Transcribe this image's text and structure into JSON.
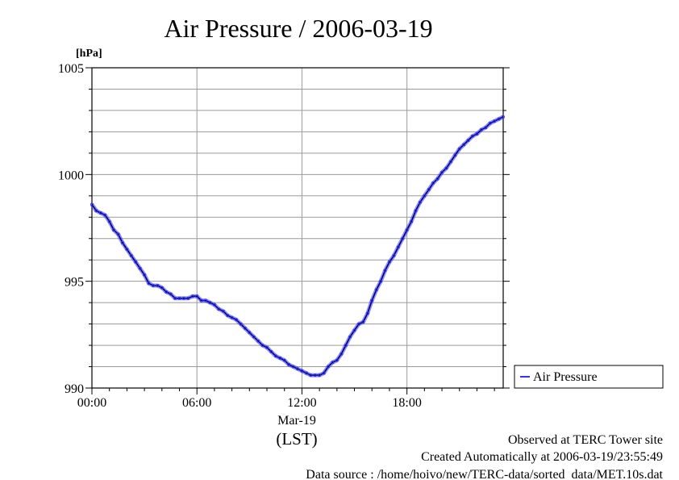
{
  "chart_data": {
    "type": "line",
    "title": "Air Pressure / 2006-03-19",
    "ylabel_unit": "[hPa]",
    "ylim": [
      990,
      1005
    ],
    "yticks": [
      {
        "value": 990,
        "label": "990"
      },
      {
        "value": 995,
        "label": "995"
      },
      {
        "value": 1000,
        "label": "1000"
      },
      {
        "value": 1005,
        "label": "1005"
      }
    ],
    "y_minor_step": 1,
    "xlim": [
      0,
      23.5
    ],
    "xticks": [
      {
        "value": 0,
        "label": "00:00"
      },
      {
        "value": 6,
        "label": "06:00"
      },
      {
        "value": 12,
        "label": "12:00"
      },
      {
        "value": 18,
        "label": "18:00"
      }
    ],
    "x_date_label": "Mar-19",
    "x_tz_label": "(LST)",
    "grid": true,
    "legend_position": "right",
    "series": [
      {
        "name": "Air Pressure",
        "color": "#3333ff",
        "x": [
          0,
          0.25,
          0.5,
          0.75,
          1.0,
          1.25,
          1.5,
          1.75,
          2.0,
          2.25,
          2.5,
          2.75,
          3.0,
          3.25,
          3.5,
          3.75,
          4.0,
          4.25,
          4.5,
          4.75,
          5.0,
          5.25,
          5.5,
          5.75,
          6.0,
          6.25,
          6.5,
          6.75,
          7.0,
          7.25,
          7.5,
          7.75,
          8.0,
          8.25,
          8.5,
          8.75,
          9.0,
          9.25,
          9.5,
          9.75,
          10.0,
          10.25,
          10.5,
          10.75,
          11.0,
          11.25,
          11.5,
          11.75,
          12.0,
          12.25,
          12.5,
          12.75,
          13.0,
          13.25,
          13.5,
          13.75,
          14.0,
          14.25,
          14.5,
          14.75,
          15.0,
          15.25,
          15.5,
          15.75,
          16.0,
          16.25,
          16.5,
          16.75,
          17.0,
          17.25,
          17.5,
          17.75,
          18.0,
          18.25,
          18.5,
          18.75,
          19.0,
          19.25,
          19.5,
          19.75,
          20.0,
          20.25,
          20.5,
          20.75,
          21.0,
          21.25,
          21.5,
          21.75,
          22.0,
          22.25,
          22.5,
          22.75,
          23.0,
          23.25,
          23.5
        ],
        "y": [
          998.6,
          998.3,
          998.2,
          998.1,
          997.8,
          997.4,
          997.2,
          996.8,
          996.5,
          996.2,
          995.9,
          995.6,
          995.3,
          994.9,
          994.8,
          994.8,
          994.7,
          994.5,
          994.4,
          994.2,
          994.2,
          994.2,
          994.2,
          994.3,
          994.3,
          994.1,
          994.1,
          994.0,
          993.9,
          993.7,
          993.6,
          993.4,
          993.3,
          993.2,
          993.0,
          992.8,
          992.6,
          992.4,
          992.2,
          992.0,
          991.9,
          991.7,
          991.5,
          991.4,
          991.3,
          991.1,
          991.0,
          990.9,
          990.8,
          990.7,
          990.6,
          990.6,
          990.6,
          990.7,
          991.0,
          991.2,
          991.3,
          991.6,
          992.0,
          992.4,
          992.7,
          993.0,
          993.1,
          993.5,
          994.1,
          994.6,
          995.0,
          995.5,
          995.9,
          996.2,
          996.6,
          997.0,
          997.4,
          997.8,
          998.3,
          998.7,
          999.0,
          999.3,
          999.6,
          999.8,
          1000.1,
          1000.3,
          1000.6,
          1000.9,
          1001.2,
          1001.4,
          1001.6,
          1001.8,
          1001.9,
          1002.1,
          1002.2,
          1002.4,
          1002.5,
          1002.6,
          1002.7
        ]
      }
    ]
  },
  "footer": {
    "line1": "Observed at TERC Tower site",
    "line2": "Created Automatically at 2006-03-19/23:55:49",
    "line3": "Data source : /home/hoivo/new/TERC-data/sorted  data/MET.10s.dat"
  }
}
